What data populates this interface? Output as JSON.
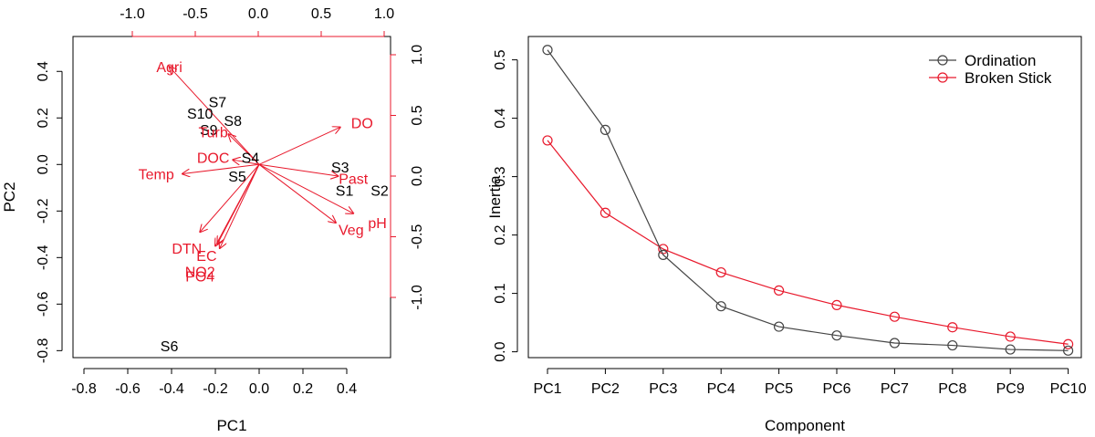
{
  "chart_data": [
    {
      "type": "biplot",
      "xlabel": "PC1",
      "ylabel": "PC2",
      "xlim": [
        -0.85,
        0.6
      ],
      "ylim": [
        -0.83,
        0.55
      ],
      "x_ticks": [
        "-0.8",
        "-0.6",
        "-0.4",
        "-0.2",
        "0.0",
        "0.2",
        "0.4"
      ],
      "y_ticks": [
        "-0.8",
        "-0.6",
        "-0.4",
        "-0.2",
        "0.0",
        "0.2",
        "0.4"
      ],
      "top_axis_ticks": [
        "-1.0",
        "-0.5",
        "0.0",
        "0.5",
        "1.0"
      ],
      "right_axis_ticks": [
        "-1.0",
        "-0.5",
        "0.0",
        "0.5",
        "1.0"
      ],
      "top_axis_values": [
        -1.0,
        -0.5,
        0.0,
        0.5,
        1.0
      ],
      "right_axis_values": [
        -1.0,
        -0.5,
        0.0,
        0.5,
        1.0
      ],
      "colors": {
        "sites": "#000000",
        "variables": "#e8192c"
      },
      "sites": [
        {
          "name": "S7",
          "x": -0.19,
          "y": 0.27
        },
        {
          "name": "S10",
          "x": -0.27,
          "y": 0.22
        },
        {
          "name": "S8",
          "x": -0.12,
          "y": 0.19
        },
        {
          "name": "S9",
          "x": -0.23,
          "y": 0.15
        },
        {
          "name": "S4",
          "x": -0.04,
          "y": 0.03
        },
        {
          "name": "S5",
          "x": -0.1,
          "y": -0.05
        },
        {
          "name": "S3",
          "x": 0.37,
          "y": -0.01
        },
        {
          "name": "S1",
          "x": 0.39,
          "y": -0.11
        },
        {
          "name": "S2",
          "x": 0.55,
          "y": -0.11
        },
        {
          "name": "S6",
          "x": -0.41,
          "y": -0.78
        }
      ],
      "variables": [
        {
          "name": "Agri",
          "x": -0.41,
          "y": 0.42,
          "lx": -0.41,
          "ly": 0.42
        },
        {
          "name": "Turb",
          "x": -0.14,
          "y": 0.13,
          "lx": -0.21,
          "ly": 0.14
        },
        {
          "name": "DO",
          "x": 0.37,
          "y": 0.16,
          "lx": 0.47,
          "ly": 0.18
        },
        {
          "name": "DOC",
          "x": -0.12,
          "y": 0.02,
          "lx": -0.21,
          "ly": 0.03
        },
        {
          "name": "Temp",
          "x": -0.35,
          "y": -0.04,
          "lx": -0.47,
          "ly": -0.04
        },
        {
          "name": "Past",
          "x": 0.36,
          "y": -0.05,
          "lx": 0.43,
          "ly": -0.06
        },
        {
          "name": "pH",
          "x": 0.43,
          "y": -0.21,
          "lx": 0.54,
          "ly": -0.25
        },
        {
          "name": "Veg",
          "x": 0.35,
          "y": -0.25,
          "lx": 0.42,
          "ly": -0.28
        },
        {
          "name": "DTN",
          "x": -0.27,
          "y": -0.29,
          "lx": -0.33,
          "ly": -0.36
        },
        {
          "name": "EC",
          "x": -0.19,
          "y": -0.34,
          "lx": -0.24,
          "ly": -0.39
        },
        {
          "name": "NO2",
          "x": -0.2,
          "y": -0.35,
          "lx": -0.27,
          "ly": -0.46
        },
        {
          "name": "PO4",
          "x": -0.18,
          "y": -0.36,
          "lx": -0.27,
          "ly": -0.48
        }
      ]
    },
    {
      "type": "line",
      "xlabel": "Component",
      "ylabel": "Inertia",
      "categories": [
        "PC1",
        "PC2",
        "PC3",
        "PC4",
        "PC5",
        "PC6",
        "PC7",
        "PC8",
        "PC9",
        "PC10"
      ],
      "y_ticks": [
        "0.0",
        "0.1",
        "0.2",
        "0.3",
        "0.4",
        "0.5"
      ],
      "ylim": [
        -0.01,
        0.54
      ],
      "legend_position": "top-right",
      "series": [
        {
          "name": "Ordination",
          "color": "#444444",
          "values": [
            0.517,
            0.38,
            0.166,
            0.078,
            0.043,
            0.028,
            0.015,
            0.011,
            0.004,
            0.002
          ]
        },
        {
          "name": "Broken Stick",
          "color": "#e8192c",
          "values": [
            0.362,
            0.238,
            0.176,
            0.136,
            0.105,
            0.08,
            0.06,
            0.042,
            0.026,
            0.013
          ]
        }
      ]
    }
  ]
}
